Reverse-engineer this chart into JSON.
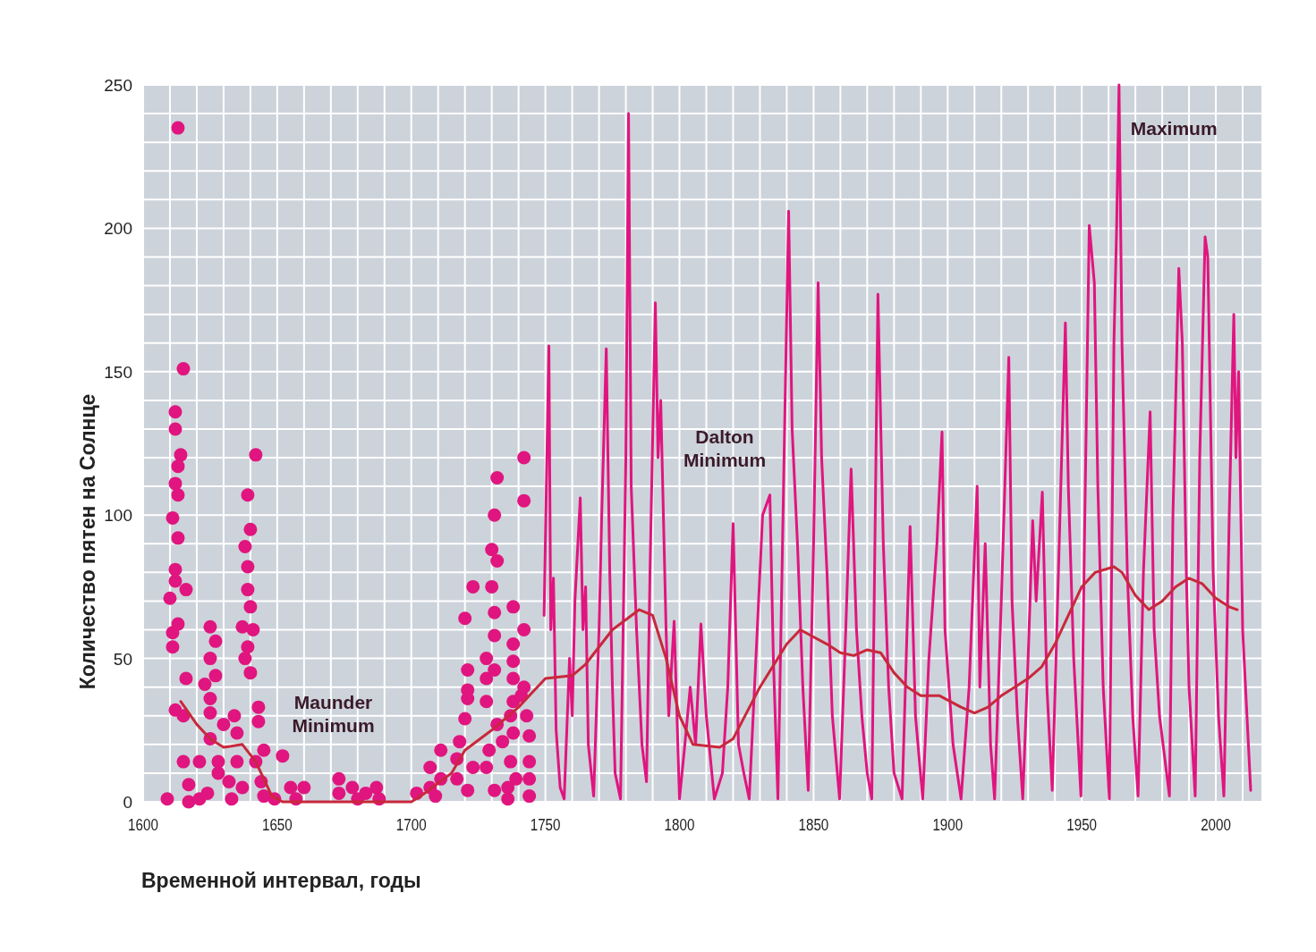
{
  "chart_data": {
    "type": "line",
    "xlabel": "Временной интервал, годы",
    "ylabel": "Количество пятен на Солнце",
    "xlim": [
      1600,
      2017
    ],
    "ylim": [
      0,
      250
    ],
    "xticks": [
      1600,
      {
        "value": 1610,
        "label": null
      },
      {
        "value": 1620,
        "label": null
      },
      {
        "value": 1630,
        "label": null
      },
      {
        "value": 1640,
        "label": null
      },
      1650,
      {
        "value": 1660,
        "label": null
      },
      {
        "value": 1670,
        "label": null
      },
      {
        "value": 1680,
        "label": null
      },
      {
        "value": 1690,
        "label": null
      },
      1700,
      {
        "value": 1710,
        "label": null
      },
      {
        "value": 1720,
        "label": null
      },
      {
        "value": 1730,
        "label": null
      },
      {
        "value": 1740,
        "label": null
      },
      1750,
      {
        "value": 1760,
        "label": null
      },
      {
        "value": 1770,
        "label": null
      },
      {
        "value": 1780,
        "label": null
      },
      {
        "value": 1790,
        "label": null
      },
      1800,
      {
        "value": 1810,
        "label": null
      },
      {
        "value": 1820,
        "label": null
      },
      {
        "value": 1830,
        "label": null
      },
      {
        "value": 1840,
        "label": null
      },
      1850,
      {
        "value": 1860,
        "label": null
      },
      {
        "value": 1870,
        "label": null
      },
      {
        "value": 1880,
        "label": null
      },
      {
        "value": 1890,
        "label": null
      },
      1900,
      {
        "value": 1910,
        "label": null
      },
      {
        "value": 1920,
        "label": null
      },
      {
        "value": 1930,
        "label": null
      },
      {
        "value": 1940,
        "label": null
      },
      1950,
      {
        "value": 1960,
        "label": null
      },
      {
        "value": 1970,
        "label": null
      },
      {
        "value": 1980,
        "label": null
      },
      {
        "value": 1990,
        "label": null
      },
      2000,
      {
        "value": 2010,
        "label": null
      }
    ],
    "yticks": [
      0,
      {
        "value": 10,
        "label": null
      },
      {
        "value": 20,
        "label": null
      },
      {
        "value": 30,
        "label": null
      },
      {
        "value": 40,
        "label": null
      },
      50,
      {
        "value": 60,
        "label": null
      },
      {
        "value": 70,
        "label": null
      },
      {
        "value": 80,
        "label": null
      },
      {
        "value": 90,
        "label": null
      },
      100,
      {
        "value": 110,
        "label": null
      },
      {
        "value": 120,
        "label": null
      },
      {
        "value": 130,
        "label": null
      },
      {
        "value": 140,
        "label": null
      },
      150,
      {
        "value": 160,
        "label": null
      },
      {
        "value": 170,
        "label": null
      },
      {
        "value": 180,
        "label": null
      },
      {
        "value": 190,
        "label": null
      },
      200,
      {
        "value": 210,
        "label": null
      },
      {
        "value": 220,
        "label": null
      },
      {
        "value": 230,
        "label": null
      },
      {
        "value": 240,
        "label": null
      },
      250
    ],
    "grid": true,
    "annotations": [
      "Maunder Minimum",
      "Dalton Minimum",
      "Maximum"
    ],
    "series": [
      {
        "type": "scatter",
        "marker": "circle",
        "color": "#e0157f",
        "x": [
          1609,
          1613,
          1615,
          1612,
          1612,
          1614,
          1612,
          1613,
          1613,
          1611,
          1613,
          1612,
          1612,
          1616,
          1610,
          1613,
          1611,
          1611,
          1616,
          1612,
          1615,
          1615,
          1617,
          1617,
          1625,
          1627,
          1625,
          1627,
          1623,
          1625,
          1625,
          1625,
          1630,
          1634,
          1635,
          1621,
          1628,
          1635,
          1632,
          1624,
          1628,
          1637,
          1633,
          1621,
          1642,
          1639,
          1640,
          1638,
          1639,
          1639,
          1640,
          1637,
          1641,
          1639,
          1638,
          1640,
          1643,
          1643,
          1642,
          1644,
          1645,
          1645,
          1652,
          1649,
          1655,
          1657,
          1660,
          1673,
          1673,
          1678,
          1680,
          1683,
          1687,
          1688,
          1702,
          1707,
          1707,
          1711,
          1711,
          1709,
          1717,
          1717,
          1720,
          1721,
          1721,
          1720,
          1723,
          1721,
          1718,
          1721,
          1723,
          1728,
          1731,
          1728,
          1728,
          1728,
          1730,
          1731,
          1732,
          1730,
          1732,
          1731,
          1731,
          1731,
          1732,
          1729,
          1734,
          1736,
          1736,
          1738,
          1738,
          1738,
          1738,
          1738,
          1737,
          1741,
          1738,
          1737,
          1742,
          1742,
          1742,
          1742,
          1743,
          1744,
          1744,
          1744,
          1744,
          1739
        ],
        "values": [
          1,
          235,
          151,
          136,
          130,
          121,
          111,
          117,
          107,
          99,
          92,
          81,
          77,
          74,
          71,
          62,
          59,
          54,
          43,
          32,
          30,
          14,
          6,
          0,
          61,
          56,
          50,
          44,
          41,
          36,
          31,
          22,
          27,
          30,
          24,
          14,
          14,
          14,
          7,
          3,
          10,
          5,
          1,
          1,
          121,
          107,
          95,
          89,
          82,
          74,
          68,
          61,
          60,
          54,
          50,
          45,
          33,
          28,
          14,
          7,
          2,
          18,
          16,
          1,
          5,
          1,
          5,
          8,
          3,
          5,
          1,
          3,
          5,
          1,
          3,
          12,
          5,
          18,
          8,
          2,
          8,
          15,
          29,
          36,
          46,
          64,
          75,
          39,
          21,
          4,
          12,
          12,
          4,
          50,
          43,
          35,
          75,
          100,
          113,
          88,
          84,
          66,
          58,
          46,
          27,
          18,
          21,
          5,
          1,
          68,
          55,
          49,
          43,
          35,
          30,
          37,
          24,
          14,
          120,
          105,
          60,
          40,
          30,
          23,
          14,
          8,
          2,
          8
        ]
      },
      {
        "color": "#e0157f",
        "x": [
          1749.5,
          1751.3,
          1752,
          1753,
          1754,
          1755.5,
          1757,
          1759,
          1760,
          1761,
          1763,
          1764,
          1765,
          1766,
          1768,
          1770,
          1771,
          1772.7,
          1774,
          1775,
          1776,
          1778,
          1780,
          1781,
          1782,
          1784,
          1786,
          1787.7,
          1789,
          1791,
          1792,
          1793,
          1795,
          1796,
          1798,
          1800,
          1802,
          1804,
          1806,
          1808,
          1810,
          1813,
          1816,
          1818,
          1820,
          1822,
          1824,
          1826,
          1829,
          1831,
          1833.7,
          1835,
          1836.7,
          1839,
          1840.7,
          1842,
          1844,
          1846,
          1848,
          1850,
          1851.7,
          1853,
          1855,
          1857,
          1859.7,
          1862,
          1864,
          1866,
          1868,
          1870,
          1871.7,
          1873,
          1874,
          1876,
          1878,
          1880,
          1883,
          1886,
          1888,
          1890.7,
          1893,
          1896,
          1897.9,
          1899,
          1902,
          1905,
          1908,
          1911,
          1912,
          1914,
          1916,
          1917.5,
          1920,
          1922.8,
          1924,
          1926,
          1928,
          1930,
          1931.7,
          1933,
          1935.3,
          1937,
          1939,
          1941,
          1943.9,
          1945,
          1947,
          1949.7,
          1951,
          1952.8,
          1954.7,
          1956,
          1958,
          1960.3,
          1962,
          1963,
          1963.9,
          1965,
          1967,
          1969,
          1971,
          1973,
          1975.5,
          1977,
          1979,
          1982.7,
          1984,
          1986.2,
          1987.5,
          1989,
          1990,
          1992.3,
          1994,
          1996,
          1997,
          1999,
          2001,
          2003,
          2005,
          2006.7,
          2007.5,
          2008.5,
          2010,
          2013
        ],
        "values": [
          65,
          159,
          60,
          78,
          25,
          5,
          1,
          50,
          30,
          70,
          106,
          60,
          75,
          20,
          2,
          60,
          100,
          158,
          80,
          40,
          10,
          1,
          120,
          240,
          110,
          60,
          20,
          7,
          80,
          174,
          120,
          140,
          60,
          30,
          63,
          1,
          20,
          40,
          20,
          62,
          30,
          1,
          10,
          40,
          97,
          20,
          10,
          1,
          60,
          100,
          107,
          50,
          1,
          120,
          206,
          130,
          90,
          40,
          4,
          90,
          181,
          120,
          80,
          30,
          1,
          60,
          116,
          60,
          30,
          10,
          1,
          100,
          177,
          90,
          40,
          10,
          1,
          96,
          30,
          1,
          50,
          90,
          129,
          60,
          20,
          1,
          40,
          110,
          40,
          90,
          20,
          1,
          70,
          155,
          70,
          30,
          1,
          50,
          98,
          70,
          108,
          40,
          4,
          70,
          167,
          110,
          50,
          2,
          90,
          201,
          181,
          110,
          40,
          1,
          160,
          200,
          250,
          160,
          80,
          30,
          2,
          80,
          136,
          60,
          30,
          2,
          100,
          186,
          160,
          80,
          40,
          2,
          120,
          197,
          190,
          80,
          30,
          2,
          100,
          170,
          120,
          150,
          60,
          4
        ]
      },
      {
        "color": "#c8283c",
        "x": [
          1614,
          1620,
          1625,
          1630,
          1637,
          1642,
          1648,
          1652,
          1660,
          1670,
          1680,
          1690,
          1700,
          1705,
          1715,
          1720,
          1730,
          1740,
          1745,
          1750,
          1760,
          1765,
          1775,
          1785,
          1790,
          1795,
          1800,
          1805,
          1815,
          1820,
          1830,
          1840,
          1845,
          1855,
          1860,
          1865,
          1870,
          1875,
          1880,
          1885,
          1890,
          1897,
          1905,
          1910,
          1915,
          1920,
          1925,
          1930,
          1935,
          1940,
          1945,
          1950,
          1955,
          1962,
          1965,
          1970,
          1975,
          1980,
          1985,
          1990,
          1995,
          2000,
          2005,
          2008
        ],
        "values": [
          35,
          27,
          22,
          19,
          20,
          14,
          2,
          0,
          0,
          0,
          0,
          0,
          0,
          3,
          10,
          18,
          25,
          33,
          38,
          43,
          44,
          48,
          60,
          67,
          65,
          50,
          30,
          20,
          19,
          22,
          40,
          55,
          60,
          55,
          52,
          51,
          53,
          52,
          45,
          40,
          37,
          37,
          33,
          31,
          33,
          37,
          40,
          43,
          47,
          55,
          65,
          75,
          80,
          82,
          80,
          72,
          67,
          70,
          75,
          78,
          76,
          71,
          68,
          67
        ]
      }
    ]
  }
}
